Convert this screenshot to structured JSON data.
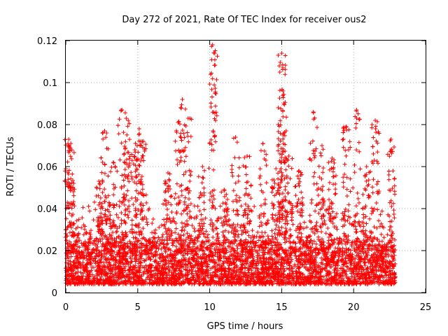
{
  "chart_data": {
    "type": "scatter",
    "title": "Day 272 of 2021, Rate Of TEC Index for receiver ous2",
    "xlabel": "GPS time / hours",
    "ylabel": "ROTI / TECUs",
    "xlim": [
      0,
      25
    ],
    "ylim": [
      0,
      0.12
    ],
    "x_ticks": [
      "0",
      "5",
      "10",
      "15",
      "20",
      "25"
    ],
    "y_ticks": [
      "0",
      "0.02",
      "0.04",
      "0.06",
      "0.08",
      "0.1",
      "0.12"
    ],
    "grid": true,
    "marker": "+",
    "series": [
      {
        "color": "#ff0000",
        "x_range": [
          0.0,
          22.9
        ],
        "baseline_range": [
          0.004,
          0.025
        ],
        "peaks": [
          {
            "x": 0.2,
            "y": 0.073
          },
          {
            "x": 0.35,
            "y": 0.071
          },
          {
            "x": 2.3,
            "y": 0.053
          },
          {
            "x": 2.7,
            "y": 0.077
          },
          {
            "x": 3.3,
            "y": 0.062
          },
          {
            "x": 3.9,
            "y": 0.087
          },
          {
            "x": 4.2,
            "y": 0.083
          },
          {
            "x": 4.8,
            "y": 0.068
          },
          {
            "x": 5.1,
            "y": 0.078
          },
          {
            "x": 5.4,
            "y": 0.072
          },
          {
            "x": 7.1,
            "y": 0.057
          },
          {
            "x": 7.8,
            "y": 0.081
          },
          {
            "x": 8.1,
            "y": 0.092
          },
          {
            "x": 8.5,
            "y": 0.083
          },
          {
            "x": 9.5,
            "y": 0.06
          },
          {
            "x": 10.2,
            "y": 0.118
          },
          {
            "x": 10.35,
            "y": 0.114
          },
          {
            "x": 11.0,
            "y": 0.049
          },
          {
            "x": 11.8,
            "y": 0.074
          },
          {
            "x": 12.6,
            "y": 0.065
          },
          {
            "x": 13.7,
            "y": 0.071
          },
          {
            "x": 14.6,
            "y": 0.059
          },
          {
            "x": 15.0,
            "y": 0.114
          },
          {
            "x": 15.1,
            "y": 0.096
          },
          {
            "x": 15.15,
            "y": 0.09
          },
          {
            "x": 15.5,
            "y": 0.065
          },
          {
            "x": 16.2,
            "y": 0.058
          },
          {
            "x": 17.2,
            "y": 0.086
          },
          {
            "x": 17.8,
            "y": 0.07
          },
          {
            "x": 18.5,
            "y": 0.064
          },
          {
            "x": 19.5,
            "y": 0.079
          },
          {
            "x": 20.2,
            "y": 0.087
          },
          {
            "x": 20.9,
            "y": 0.06
          },
          {
            "x": 21.5,
            "y": 0.082
          },
          {
            "x": 22.6,
            "y": 0.073
          }
        ]
      }
    ]
  }
}
